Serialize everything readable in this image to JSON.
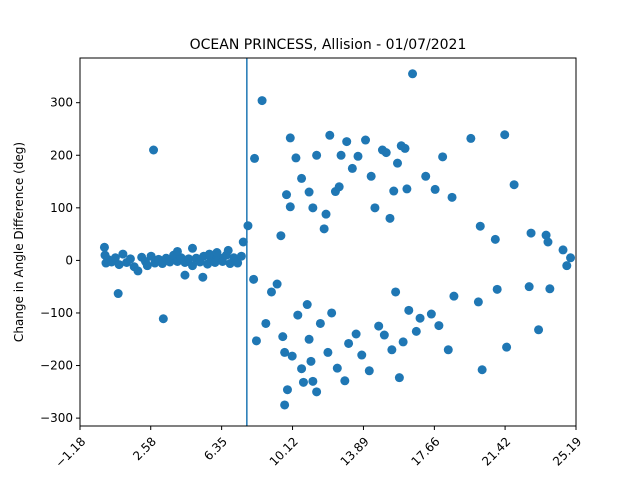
{
  "chart_data": {
    "type": "scatter",
    "title": "OCEAN PRINCESS, Allision - 01/07/2021",
    "xlabel": "",
    "ylabel": "Change in Angle Difference (deg)",
    "xlim": [
      -1.18,
      25.19
    ],
    "ylim": [
      -315,
      385
    ],
    "x_ticks": [
      -1.18,
      2.58,
      6.35,
      10.12,
      13.89,
      17.66,
      21.42,
      25.19
    ],
    "x_tick_labels": [
      "−1.18",
      "2.58",
      "6.35",
      "10.12",
      "13.89",
      "17.66",
      "21.42",
      "25.19"
    ],
    "y_ticks": [
      -300,
      -200,
      -100,
      0,
      100,
      200,
      300
    ],
    "y_tick_labels": [
      "−300",
      "−200",
      "−100",
      "0",
      "100",
      "200",
      "300"
    ],
    "grid": false,
    "color": "#1f77b4",
    "vline_x": 7.69,
    "series": [
      {
        "points": [
          [
            0.12,
            25
          ],
          [
            0.15,
            10
          ],
          [
            0.2,
            -5
          ],
          [
            0.3,
            2
          ],
          [
            0.5,
            -3
          ],
          [
            0.7,
            5
          ],
          [
            0.9,
            -8
          ],
          [
            1.1,
            12
          ],
          [
            1.3,
            -4
          ],
          [
            1.5,
            3
          ],
          [
            1.7,
            -12
          ],
          [
            1.9,
            -20
          ],
          [
            2.1,
            6
          ],
          [
            2.3,
            -2
          ],
          [
            2.4,
            -10
          ],
          [
            2.6,
            8
          ],
          [
            2.8,
            -5
          ],
          [
            3.0,
            2
          ],
          [
            3.2,
            -6
          ],
          [
            3.4,
            4
          ],
          [
            3.6,
            -3
          ],
          [
            3.8,
            10
          ],
          [
            4.0,
            -2
          ],
          [
            4.2,
            5
          ],
          [
            4.4,
            -4
          ],
          [
            4.6,
            3
          ],
          [
            4.8,
            -10
          ],
          [
            5.0,
            4
          ],
          [
            5.2,
            -3
          ],
          [
            5.4,
            8
          ],
          [
            5.6,
            -7
          ],
          [
            5.8,
            3
          ],
          [
            6.0,
            -4
          ],
          [
            6.2,
            6
          ],
          [
            6.4,
            -2
          ],
          [
            6.6,
            10
          ],
          [
            6.8,
            -6
          ],
          [
            7.0,
            5
          ],
          [
            7.2,
            -5
          ],
          [
            7.4,
            8
          ],
          [
            0.85,
            -63
          ],
          [
            2.73,
            210
          ],
          [
            3.25,
            -111
          ],
          [
            4.0,
            17
          ],
          [
            4.4,
            -28
          ],
          [
            4.8,
            23
          ],
          [
            5.35,
            -32
          ],
          [
            5.7,
            12
          ],
          [
            6.1,
            15
          ],
          [
            6.7,
            19
          ],
          [
            7.5,
            35
          ],
          [
            7.75,
            66
          ],
          [
            8.05,
            -36
          ],
          [
            8.1,
            194
          ],
          [
            8.5,
            304
          ],
          [
            8.2,
            -153
          ],
          [
            8.7,
            -120
          ],
          [
            9.0,
            -60
          ],
          [
            9.3,
            -45
          ],
          [
            9.5,
            47
          ],
          [
            9.7,
            -175
          ],
          [
            9.6,
            -145
          ],
          [
            9.8,
            125
          ],
          [
            10.0,
            102
          ],
          [
            9.7,
            -275
          ],
          [
            9.85,
            -246
          ],
          [
            10.0,
            233
          ],
          [
            10.3,
            195
          ],
          [
            10.1,
            -182
          ],
          [
            10.4,
            -104
          ],
          [
            10.6,
            156
          ],
          [
            10.6,
            -206
          ],
          [
            10.7,
            -232
          ],
          [
            10.9,
            -84
          ],
          [
            11.0,
            -150
          ],
          [
            11.1,
            -192
          ],
          [
            11.2,
            -230
          ],
          [
            11.4,
            -250
          ],
          [
            11.0,
            130
          ],
          [
            11.2,
            100
          ],
          [
            11.4,
            200
          ],
          [
            11.6,
            -120
          ],
          [
            11.8,
            60
          ],
          [
            11.9,
            88
          ],
          [
            12.0,
            -175
          ],
          [
            12.1,
            238
          ],
          [
            12.2,
            -100
          ],
          [
            12.4,
            131
          ],
          [
            12.5,
            -205
          ],
          [
            12.6,
            140
          ],
          [
            12.7,
            200
          ],
          [
            12.9,
            -229
          ],
          [
            13.0,
            226
          ],
          [
            13.1,
            -158
          ],
          [
            13.3,
            175
          ],
          [
            13.5,
            -140
          ],
          [
            13.6,
            198
          ],
          [
            13.8,
            -180
          ],
          [
            14.0,
            229
          ],
          [
            14.2,
            -210
          ],
          [
            14.3,
            160
          ],
          [
            14.5,
            100
          ],
          [
            14.7,
            -125
          ],
          [
            14.9,
            210
          ],
          [
            15.0,
            -142
          ],
          [
            15.1,
            205
          ],
          [
            15.3,
            80
          ],
          [
            15.4,
            -170
          ],
          [
            15.5,
            132
          ],
          [
            15.6,
            -60
          ],
          [
            15.7,
            185
          ],
          [
            15.8,
            -223
          ],
          [
            15.9,
            218
          ],
          [
            16.0,
            -155
          ],
          [
            16.1,
            213
          ],
          [
            16.2,
            136
          ],
          [
            16.3,
            -95
          ],
          [
            16.5,
            355
          ],
          [
            16.7,
            -135
          ],
          [
            16.9,
            -110
          ],
          [
            17.2,
            160
          ],
          [
            17.5,
            -102
          ],
          [
            17.7,
            135
          ],
          [
            17.9,
            -124
          ],
          [
            18.1,
            197
          ],
          [
            18.4,
            -170
          ],
          [
            18.6,
            120
          ],
          [
            18.7,
            -68
          ],
          [
            19.6,
            232
          ],
          [
            20.1,
            65
          ],
          [
            20.0,
            -79
          ],
          [
            20.2,
            -208
          ],
          [
            20.9,
            40
          ],
          [
            21.0,
            -55
          ],
          [
            21.4,
            239
          ],
          [
            21.5,
            -165
          ],
          [
            21.9,
            144
          ],
          [
            22.8,
            52
          ],
          [
            22.7,
            -50
          ],
          [
            23.2,
            -132
          ],
          [
            23.6,
            48
          ],
          [
            23.7,
            35
          ],
          [
            23.8,
            -54
          ],
          [
            24.5,
            20
          ],
          [
            24.7,
            -10
          ],
          [
            24.9,
            5
          ]
        ]
      }
    ]
  }
}
